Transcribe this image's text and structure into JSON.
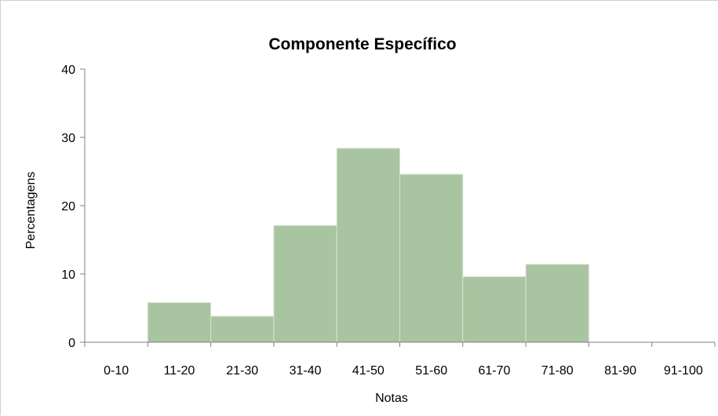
{
  "chart_data": {
    "type": "bar",
    "title": "Componente Específico",
    "xlabel": "Notas",
    "ylabel": "Percentagens",
    "categories": [
      "0-10",
      "11-20",
      "21-30",
      "31-40",
      "41-50",
      "51-60",
      "61-70",
      "71-80",
      "81-90",
      "91-100"
    ],
    "values": [
      0,
      5.8,
      3.8,
      17.1,
      28.4,
      24.6,
      9.6,
      11.4,
      0,
      0
    ],
    "ylim": [
      0,
      40
    ],
    "yticks": [
      0,
      10,
      20,
      30,
      40
    ],
    "grid": false,
    "legend": "none",
    "bar_color": "#a9c4a0",
    "bar_edge_color": "#d9e4d4",
    "axis_color": "#808080"
  }
}
